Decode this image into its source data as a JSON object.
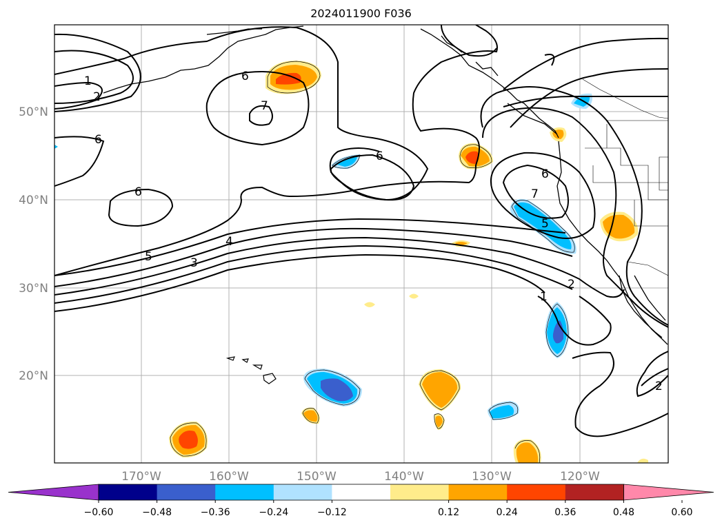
{
  "title": "2024011900 F036",
  "map": {
    "lat_labels": [
      "50°N",
      "40°N",
      "30°N",
      "20°N"
    ],
    "lon_labels": [
      "170°W",
      "160°W",
      "150°W",
      "140°W",
      "130°W",
      "120°W"
    ],
    "grid": true,
    "contour_color": "#000000",
    "contour_labels": [
      "1",
      "2",
      "6",
      "6",
      "6",
      "7",
      "6",
      "6",
      "7",
      "5",
      "5",
      "4",
      "3",
      "2",
      "1",
      "2"
    ]
  },
  "colorbar": {
    "ticks": [
      "−0.60",
      "−0.48",
      "−0.36",
      "−0.24",
      "−0.12",
      "0.12",
      "0.24",
      "0.36",
      "0.48",
      "0.60"
    ],
    "colors": [
      "#9932cc",
      "#00008b",
      "#3a5fcd",
      "#00bfff",
      "#b0e2ff",
      "#ffffff",
      "#ffec8b",
      "#ffa500",
      "#ff4500",
      "#b22222",
      "#ff88aa"
    ]
  }
}
